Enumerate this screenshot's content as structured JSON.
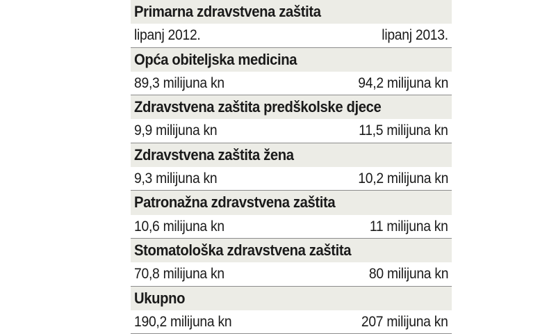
{
  "header": {
    "title": "Primarna zdravstvena zaštita",
    "col_left": "lipanj 2012.",
    "col_right": "lipanj 2013."
  },
  "rows": [
    {
      "label": "Opća obiteljska medicina",
      "left": "89,3 milijuna kn",
      "right": "94,2 milijuna kn"
    },
    {
      "label": "Zdravstvena zaštita predškolske djece",
      "left": "9,9 milijuna kn",
      "right": "11,5 milijuna kn"
    },
    {
      "label": "Zdravstvena zaštita žena",
      "left": "9,3 milijuna kn",
      "right": "10,2 milijuna kn"
    },
    {
      "label": "Patronažna zdravstvena zaštita",
      "left": "10,6 milijuna kn",
      "right": "11 milijuna kn"
    },
    {
      "label": "Stomatološka zdravstvena zaštita",
      "left": "70,8 milijuna kn",
      "right": "80 milijuna kn"
    },
    {
      "label": "Ukupno",
      "left": "190,2 milijuna kn",
      "right": "207 milijuna kn"
    }
  ]
}
